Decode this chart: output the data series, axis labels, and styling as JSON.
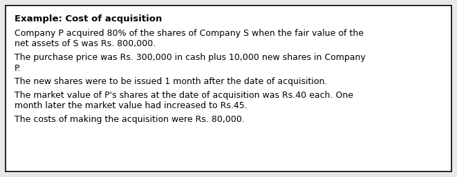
{
  "title": "Example: Cost of acquisition",
  "paragraphs": [
    "Company P acquired 80% of the shares of Company S when the fair value of the\nnet assets of S was Rs. 800,000.",
    "The purchase price was Rs. 300,000 in cash plus 10,000 new shares in Company\nP.",
    "The new shares were to be issued 1 month after the date of acquisition.",
    "The market value of P's shares at the date of acquisition was Rs.40 each. One\nmonth later the market value had increased to Rs.45.",
    "The costs of making the acquisition were Rs. 80,000."
  ],
  "background_color": "#e8e8e8",
  "box_color": "#ffffff",
  "border_color": "#000000",
  "text_color": "#000000",
  "title_fontsize": 9.5,
  "body_fontsize": 9.0,
  "fig_width": 6.61,
  "fig_height": 2.57,
  "dpi": 100
}
